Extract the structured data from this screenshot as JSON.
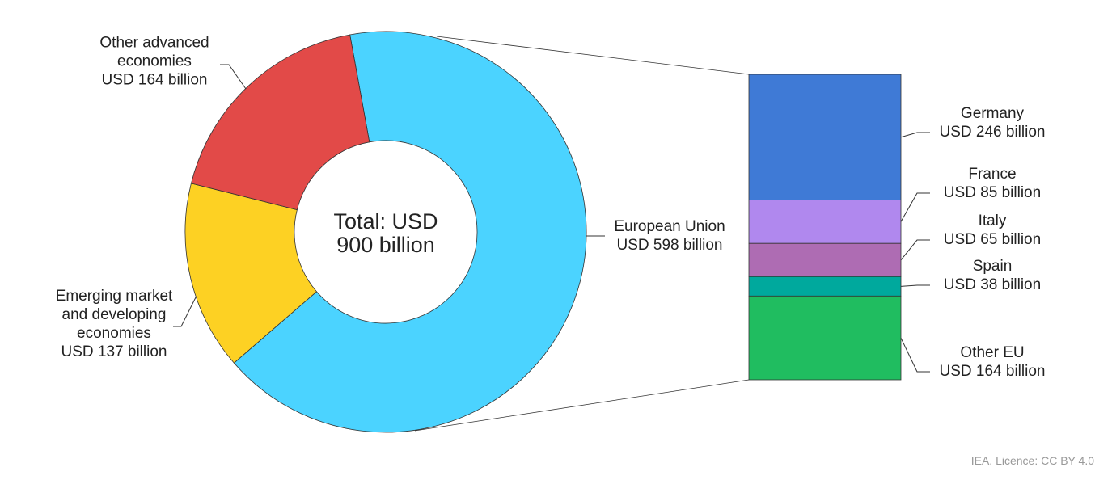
{
  "chart_data": [
    {
      "type": "donut",
      "categories": [
        "European Union",
        "Emerging market and developing economies",
        "Other advanced economies"
      ],
      "values": [
        598,
        137,
        164
      ],
      "value_labels": [
        "USD 598 billion",
        "USD 137 billion",
        "USD 164 billion"
      ],
      "colors": [
        "#4bd3ff",
        "#fdd123",
        "#e24a48"
      ],
      "total": {
        "value": 900,
        "label": "Total: USD 900 billion"
      }
    },
    {
      "type": "stacked_bar",
      "series": [
        {
          "name": "Germany",
          "color": "#3f7ad6",
          "values": [
            246
          ],
          "value_labels": [
            "USD 246 billion"
          ]
        },
        {
          "name": "France",
          "color": "#b088ee",
          "values": [
            85
          ],
          "value_labels": [
            "USD 85 billion"
          ]
        },
        {
          "name": "Italy",
          "color": "#ae6cb3",
          "values": [
            65
          ],
          "value_labels": [
            "USD 65 billion"
          ]
        },
        {
          "name": "Spain",
          "color": "#00a99d",
          "values": [
            38
          ],
          "value_labels": [
            "USD 38 billion"
          ]
        },
        {
          "name": "Other EU",
          "color": "#20bd60",
          "values": [
            164
          ],
          "value_labels": [
            "USD 164 billion"
          ]
        }
      ]
    }
  ],
  "source": "IEA. Licence: CC BY 4.0"
}
